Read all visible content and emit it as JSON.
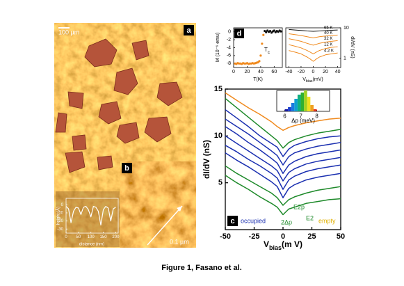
{
  "figure": {
    "caption": "Figure 1, Fasano et al.",
    "panel_letters": [
      "a",
      "b",
      "c",
      "d"
    ],
    "scale_a": "100 µm",
    "scale_b": "0.1 µm"
  },
  "chart_data": [
    {
      "type": "line",
      "ylabel": "dI/dV (nS)",
      "xlabel": {
        "main": "V",
        "sub": "bias",
        "unit": "(m V)"
      },
      "x": [
        -50,
        -40,
        -30,
        -20,
        -10,
        -5,
        0,
        5,
        10,
        20,
        30,
        40,
        50
      ],
      "xlim": [
        -50,
        50
      ],
      "xticks": [
        -50,
        -25,
        0,
        25,
        50
      ],
      "ylim": [
        0,
        15
      ],
      "yticks": [
        5,
        10,
        15
      ],
      "series": [
        {
          "color": "#f08a1e",
          "values": [
            14.6,
            13.8,
            13.0,
            12.3,
            11.5,
            11.0,
            10.6,
            10.9,
            11.1,
            11.4,
            11.6,
            11.8,
            11.9
          ]
        },
        {
          "color": "#1e8a2a",
          "values": [
            14.0,
            13.0,
            12.0,
            11.0,
            10.0,
            9.5,
            8.7,
            9.3,
            9.6,
            10.0,
            10.3,
            10.5,
            10.7
          ]
        },
        {
          "color": "#1a2fb0",
          "values": [
            12.8,
            11.9,
            11.0,
            10.0,
            9.2,
            8.8,
            7.8,
            8.6,
            9.0,
            9.4,
            9.7,
            9.9,
            10.0
          ]
        },
        {
          "color": "#1a2fb0",
          "values": [
            11.8,
            11.0,
            10.2,
            9.3,
            8.4,
            7.9,
            6.9,
            7.8,
            8.2,
            8.6,
            8.9,
            9.1,
            9.3
          ]
        },
        {
          "color": "#1a2fb0",
          "values": [
            11.0,
            10.2,
            9.3,
            8.5,
            7.6,
            7.1,
            6.0,
            6.9,
            7.3,
            7.8,
            8.1,
            8.3,
            8.5
          ]
        },
        {
          "color": "#1a2fb0",
          "values": [
            10.0,
            9.2,
            8.4,
            7.6,
            6.8,
            6.3,
            5.2,
            6.1,
            6.5,
            7.0,
            7.3,
            7.5,
            7.7
          ]
        },
        {
          "color": "#1a2fb0",
          "values": [
            9.0,
            8.3,
            7.5,
            6.8,
            6.0,
            5.5,
            4.3,
            5.3,
            5.7,
            6.2,
            6.5,
            6.7,
            6.9
          ]
        },
        {
          "color": "#1a2fb0",
          "values": [
            8.2,
            7.4,
            6.7,
            5.9,
            5.1,
            4.6,
            3.4,
            4.4,
            4.8,
            5.3,
            5.6,
            5.8,
            6.0
          ]
        },
        {
          "color": "#1e8a2a",
          "values": [
            6.8,
            6.0,
            5.3,
            4.6,
            3.9,
            3.4,
            2.6,
            3.2,
            3.5,
            3.9,
            4.2,
            4.4,
            4.6
          ]
        },
        {
          "color": "#1e8a2a",
          "values": [
            5.8,
            5.0,
            4.3,
            3.5,
            2.8,
            2.4,
            1.6,
            2.2,
            2.4,
            2.8,
            3.0,
            3.2,
            3.3
          ]
        }
      ],
      "annotations": [
        "occupied",
        "empty",
        "E2p",
        "E2",
        "2Δp"
      ]
    },
    {
      "type": "histogram",
      "xlabel": "Δp (meV)",
      "bins": [
        6.0,
        6.2,
        6.4,
        6.6,
        6.8,
        7.0,
        7.2,
        7.4,
        7.6,
        7.8,
        8.0
      ],
      "counts": [
        1,
        2,
        4,
        6,
        8,
        9,
        10,
        7,
        3,
        1
      ],
      "colors": [
        "#1a1aa0",
        "#1a3fd0",
        "#1a7ae0",
        "#10a0d0",
        "#10b080",
        "#30b030",
        "#a0d020",
        "#f0e020",
        "#f0a020",
        "#e03020"
      ],
      "xlim": [
        5.5,
        8.8
      ],
      "xticks": [
        6,
        7,
        8
      ],
      "ylim": [
        0,
        10
      ]
    },
    {
      "type": "scatter",
      "ylabel": "M (10⁻⁶ emu)",
      "xlabel": "T(K)",
      "annotation": {
        "main": "T",
        "sub": "c"
      },
      "xlim": [
        0,
        72
      ],
      "xticks": [
        0,
        20,
        40,
        60
      ],
      "ylim": [
        -9,
        1
      ],
      "yticks": [
        0,
        -2,
        -4,
        -6,
        -8
      ],
      "series": [
        {
          "color": "#f08a1e",
          "x": [
            2,
            4,
            6,
            8,
            10,
            12,
            14,
            16,
            18,
            20,
            22,
            24,
            26,
            28,
            30,
            32,
            34,
            36,
            38,
            40,
            42,
            44
          ],
          "values": [
            -8.0,
            -8.1,
            -7.9,
            -8.0,
            -8.0,
            -8.1,
            -7.9,
            -8.0,
            -8.0,
            -7.9,
            -8.1,
            -8.0,
            -8.0,
            -7.9,
            -8.0,
            -7.9,
            -7.8,
            -7.7,
            -7.4,
            -6.0,
            -3.0,
            -0.8
          ]
        },
        {
          "color": "#111111",
          "x": [
            46,
            48,
            50,
            52,
            54,
            56,
            58,
            60,
            62,
            64,
            66,
            68,
            70
          ],
          "values": [
            0.2,
            -0.1,
            0.3,
            0.0,
            0.2,
            -0.2,
            0.1,
            0.3,
            -0.1,
            0.2,
            0.0,
            0.3,
            0.1
          ]
        }
      ]
    },
    {
      "type": "line",
      "ylabel": "dI/dV (nS)",
      "xlabel": {
        "main": "V",
        "sub": "bias",
        "unit": "(mV)"
      },
      "log": true,
      "x": [
        -40,
        -30,
        -20,
        -10,
        -5,
        0,
        5,
        10,
        20,
        30,
        40
      ],
      "xlim": [
        -45,
        45
      ],
      "xticks": [
        -40,
        -20,
        0,
        20,
        40
      ],
      "ylim": [
        0.5,
        10
      ],
      "yticks": [
        1,
        10
      ],
      "series": [
        {
          "name": "65 K",
          "color": "#111111",
          "values": [
            8.8,
            8.5,
            8.2,
            7.9,
            7.8,
            7.7,
            7.8,
            7.9,
            8.1,
            8.3,
            8.5
          ]
        },
        {
          "name": "40 K",
          "color": "#f08a1e",
          "values": [
            6.4,
            6.0,
            5.6,
            5.1,
            4.9,
            4.7,
            4.9,
            5.1,
            5.4,
            5.6,
            5.8
          ]
        },
        {
          "name": "32 K",
          "color": "#f08a1e",
          "values": [
            4.4,
            4.0,
            3.6,
            3.1,
            2.9,
            2.7,
            2.9,
            3.1,
            3.4,
            3.6,
            3.8
          ]
        },
        {
          "name": "12 K",
          "color": "#f08a1e",
          "values": [
            2.8,
            2.5,
            2.2,
            1.8,
            1.6,
            1.4,
            1.6,
            1.8,
            2.1,
            2.3,
            2.4
          ]
        },
        {
          "name": "4.2 K",
          "color": "#f08a1e",
          "values": [
            1.8,
            1.6,
            1.4,
            1.1,
            0.95,
            0.8,
            0.95,
            1.1,
            1.3,
            1.4,
            1.5
          ]
        }
      ]
    },
    {
      "type": "line",
      "ylabel": "height (Å)",
      "xlabel": "distance (nm)",
      "x": [
        0,
        10,
        20,
        30,
        40,
        50,
        60,
        70,
        80,
        90,
        100,
        110,
        120,
        130,
        140,
        150,
        160,
        170,
        180,
        190,
        200
      ],
      "xlim": [
        0,
        210
      ],
      "xticks": [
        0,
        50,
        100,
        150,
        200
      ],
      "ylim": [
        -35,
        8
      ],
      "yticks": [
        0,
        -10,
        -20,
        -30
      ],
      "series": [
        {
          "color": "#ffffff",
          "values": [
            -2,
            -5,
            -22,
            -8,
            -3,
            -4,
            -12,
            -3,
            -2,
            -6,
            -15,
            -2,
            -3,
            -8,
            -25,
            -6,
            -2,
            -4,
            -20,
            -5,
            -3
          ]
        }
      ]
    }
  ]
}
